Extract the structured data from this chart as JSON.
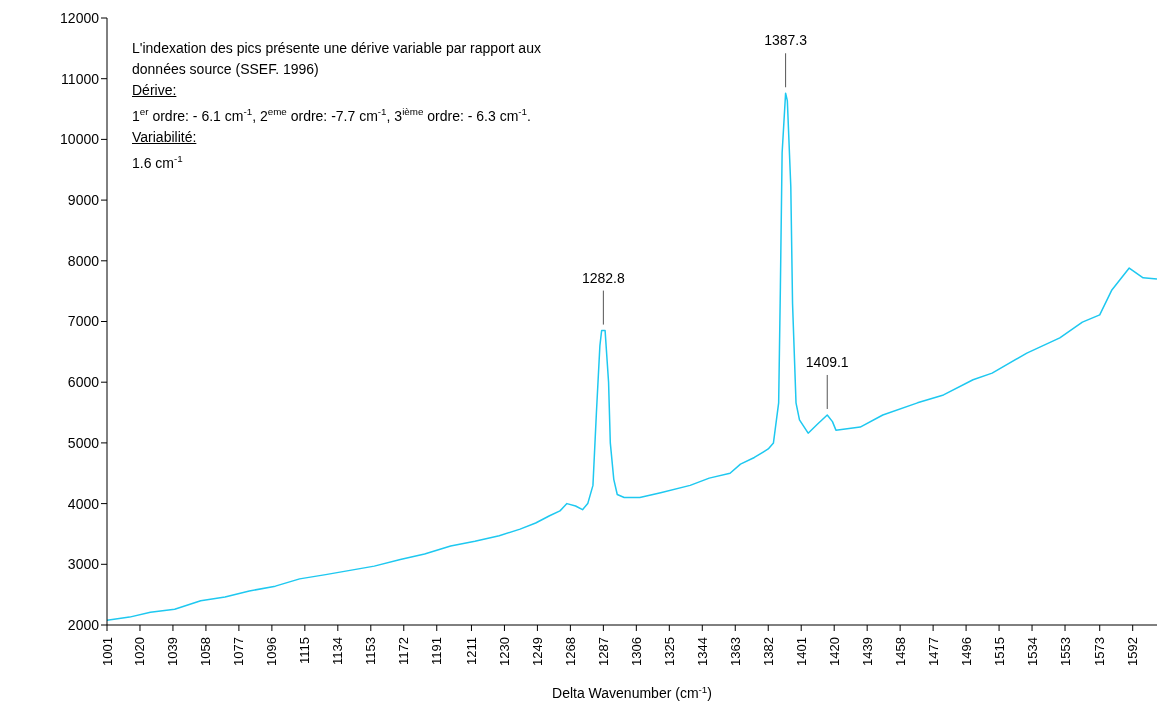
{
  "chart_data": {
    "type": "line",
    "xlabel": "Delta Wavenumber  (cm$^{-1}$)",
    "annotations": [
      "L'indexation des pics présente une dérive variable par rapport aux",
      "données source (SSEF. 1996)",
      "Dérive:",
      "1$^{er}$ ordre: - 6.1 cm$^{-1}$, 2$^{eme}$ ordre: -7.7 cm$^{-1}$, 3$^{ième}$ ordre: - 6.3 cm$^{-1}$.",
      "Variabilité:",
      "1.6 cm$^{-1}$",
      {
        "text": "1282.8",
        "x": 1287,
        "y": 6850
      },
      {
        "text": "1387.3",
        "x": 1392,
        "y": 10760
      },
      {
        "text": "1409.1",
        "x": 1416,
        "y": 5460
      }
    ],
    "x": [
      1001,
      1014,
      1026,
      1040,
      1055,
      1069,
      1083,
      1098,
      1112,
      1127,
      1141,
      1155,
      1170,
      1184,
      1199,
      1213,
      1227,
      1239,
      1248,
      1256,
      1262,
      1266,
      1271,
      1275,
      1278,
      1281,
      1283,
      1285,
      1286,
      1288,
      1290,
      1291,
      1293,
      1295,
      1299,
      1308,
      1320,
      1337,
      1348,
      1360,
      1366,
      1374,
      1382,
      1385,
      1388,
      1389,
      1390,
      1392,
      1393,
      1395,
      1396,
      1398,
      1400,
      1405,
      1410,
      1416,
      1419,
      1421,
      1435,
      1448,
      1468,
      1483,
      1500,
      1511,
      1531,
      1550,
      1563,
      1573,
      1580,
      1590,
      1598,
      1606
    ],
    "series": [
      {
        "color": "#1ec8f0",
        "values": [
          2080,
          2130,
          2210,
          2260,
          2400,
          2460,
          2560,
          2640,
          2760,
          2830,
          2900,
          2970,
          3080,
          3170,
          3300,
          3380,
          3470,
          3580,
          3680,
          3800,
          3880,
          4000,
          3960,
          3900,
          4000,
          4300,
          5500,
          6600,
          6850,
          6850,
          6000,
          5000,
          4400,
          4150,
          4100,
          4100,
          4180,
          4300,
          4420,
          4500,
          4650,
          4760,
          4900,
          5000,
          5660,
          7570,
          9780,
          10760,
          10640,
          9220,
          7300,
          5660,
          5380,
          5160,
          5300,
          5460,
          5350,
          5210,
          5260,
          5460,
          5660,
          5790,
          6040,
          6150,
          6480,
          6730,
          6990,
          7110,
          7520,
          7880,
          7720,
          7700
        ]
      }
    ],
    "xlim": [
      1001,
      1606
    ],
    "xticks": [
      1001,
      1020,
      1039,
      1058,
      1077,
      1096,
      1115,
      1134,
      1153,
      1172,
      1191,
      1211,
      1230,
      1249,
      1268,
      1287,
      1306,
      1325,
      1344,
      1363,
      1382,
      1401,
      1420,
      1439,
      1458,
      1477,
      1496,
      1515,
      1534,
      1553,
      1573,
      1592
    ],
    "ylim": [
      2000,
      12000
    ],
    "yticks": [
      2000,
      3000,
      4000,
      5000,
      6000,
      7000,
      8000,
      9000,
      10000,
      11000,
      12000
    ],
    "grid": false,
    "marker": "none",
    "line_style": "solid"
  }
}
